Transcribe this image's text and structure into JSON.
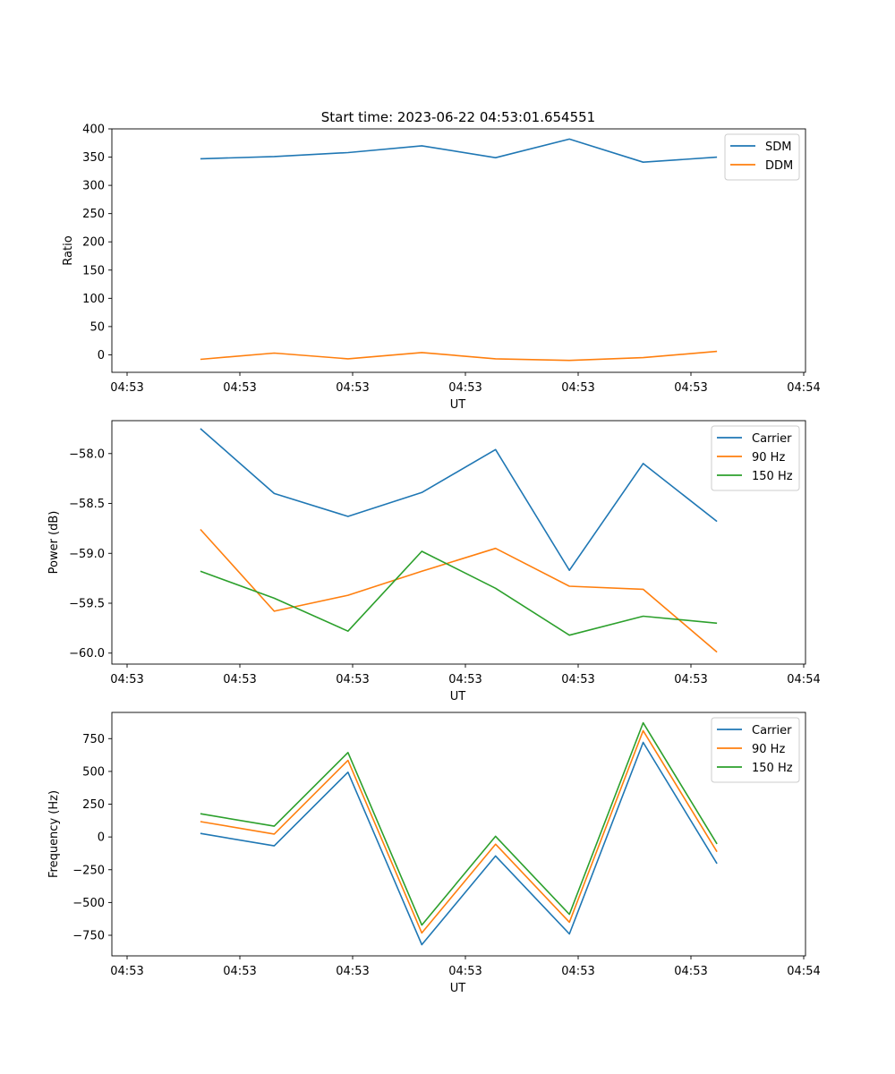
{
  "figure_title": "Start time: 2023-06-22 04:53:01.654551",
  "colors": {
    "tab_blue": "#1f77b4",
    "tab_orange": "#ff7f0e",
    "tab_green": "#2ca02c"
  },
  "chart_data": [
    {
      "type": "line",
      "title": "Start time: 2023-06-22 04:53:01.654551",
      "xlabel": "UT",
      "ylabel": "Ratio",
      "x_tick_labels": [
        "04:53",
        "04:53",
        "04:53",
        "04:53",
        "04:53",
        "04:53",
        "04:53",
        "04:54"
      ],
      "y_ticks": [
        0,
        50,
        100,
        150,
        200,
        250,
        300,
        350,
        400
      ],
      "y_tick_labels": [
        "0",
        "50",
        "100",
        "150",
        "200",
        "250",
        "300",
        "350",
        "400"
      ],
      "ylim": [
        -31,
        400
      ],
      "x_range_index": [
        -0.2,
        9.2
      ],
      "legend_position": "upper right",
      "grid": false,
      "series": [
        {
          "name": "SDM",
          "color": "#1f77b4",
          "x": [
            1,
            2,
            3,
            4,
            5,
            6,
            7,
            8
          ],
          "values": [
            347,
            351,
            358,
            370,
            349,
            382,
            341,
            350
          ]
        },
        {
          "name": "DDM",
          "color": "#ff7f0e",
          "x": [
            1,
            2,
            3,
            4,
            5,
            6,
            7,
            8
          ],
          "values": [
            -8,
            3,
            -7,
            4,
            -7,
            -10,
            -5,
            6
          ]
        }
      ]
    },
    {
      "type": "line",
      "title": "",
      "xlabel": "UT",
      "ylabel": "Power (dB)",
      "x_tick_labels": [
        "04:53",
        "04:53",
        "04:53",
        "04:53",
        "04:53",
        "04:53",
        "04:53",
        "04:54"
      ],
      "y_ticks": [
        -58.0,
        -58.5,
        -59.0,
        -59.5,
        -60.0
      ],
      "y_tick_labels": [
        "−58.0",
        "−58.5",
        "−59.0",
        "−59.5",
        "−60.0"
      ],
      "ylim": [
        -60.11,
        -57.67
      ],
      "x_range_index": [
        -0.2,
        9.2
      ],
      "legend_position": "upper right",
      "grid": false,
      "series": [
        {
          "name": "Carrier",
          "color": "#1f77b4",
          "x": [
            1,
            2,
            3,
            4,
            5,
            6,
            7,
            8
          ],
          "values": [
            -57.75,
            -58.4,
            -58.63,
            -58.39,
            -57.96,
            -59.17,
            -58.1,
            -58.68
          ]
        },
        {
          "name": "90 Hz",
          "color": "#ff7f0e",
          "x": [
            1,
            2,
            3,
            4,
            5,
            6,
            7,
            8
          ],
          "values": [
            -58.76,
            -59.58,
            -59.42,
            -59.18,
            -58.95,
            -59.33,
            -59.36,
            -59.99
          ]
        },
        {
          "name": "150 Hz",
          "color": "#2ca02c",
          "x": [
            1,
            2,
            3,
            4,
            5,
            6,
            7,
            8
          ],
          "values": [
            -59.18,
            -59.45,
            -59.78,
            -58.98,
            -59.35,
            -59.82,
            -59.63,
            -59.7
          ]
        }
      ]
    },
    {
      "type": "line",
      "title": "",
      "xlabel": "UT",
      "ylabel": "Frequency (Hz)",
      "x_tick_labels": [
        "04:53",
        "04:53",
        "04:53",
        "04:53",
        "04:53",
        "04:53",
        "04:53",
        "04:54"
      ],
      "y_ticks": [
        -750,
        -500,
        -250,
        0,
        250,
        500,
        750
      ],
      "y_tick_labels": [
        "−750",
        "−500",
        "−250",
        "0",
        "250",
        "500",
        "750"
      ],
      "ylim": [
        -907,
        950
      ],
      "x_range_index": [
        -0.2,
        9.2
      ],
      "legend_position": "upper right",
      "grid": false,
      "series": [
        {
          "name": "Carrier",
          "color": "#1f77b4",
          "x": [
            1,
            2,
            3,
            4,
            5,
            6,
            7,
            8
          ],
          "values": [
            27,
            -68,
            494,
            -822,
            -145,
            -740,
            721,
            -203
          ]
        },
        {
          "name": "90 Hz",
          "color": "#ff7f0e",
          "x": [
            1,
            2,
            3,
            4,
            5,
            6,
            7,
            8
          ],
          "values": [
            117,
            22,
            584,
            -732,
            -55,
            -650,
            811,
            -113
          ]
        },
        {
          "name": "150 Hz",
          "color": "#2ca02c",
          "x": [
            1,
            2,
            3,
            4,
            5,
            6,
            7,
            8
          ],
          "values": [
            177,
            82,
            644,
            -672,
            5,
            -590,
            871,
            -53
          ]
        }
      ]
    }
  ]
}
